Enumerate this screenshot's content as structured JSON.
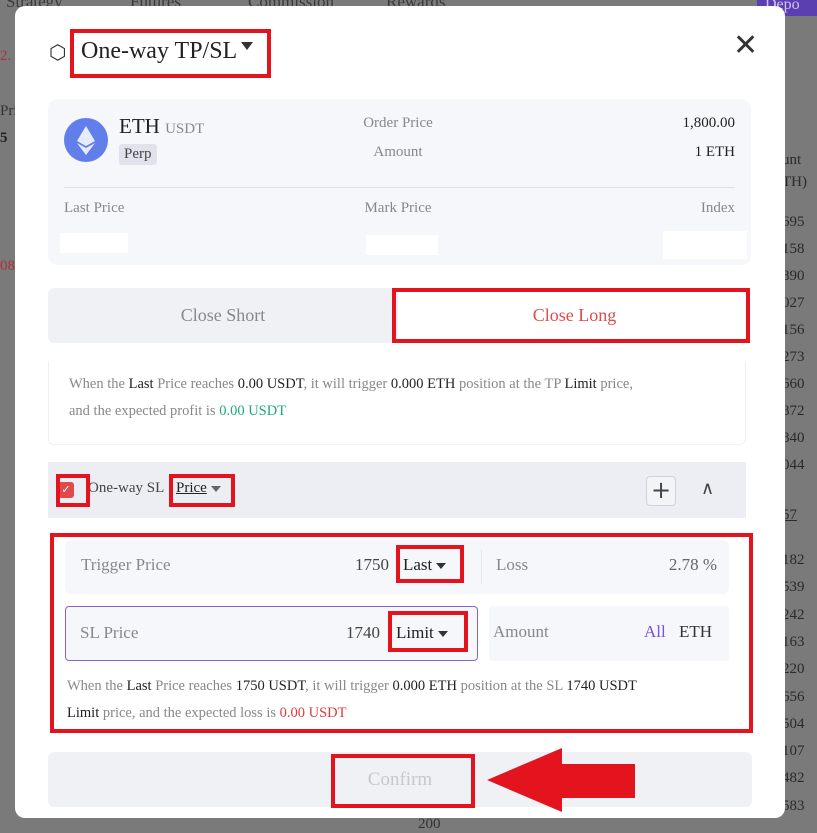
{
  "background": {
    "tabs": [
      "Strategy",
      "Futures",
      "Commission",
      "Rewards"
    ],
    "deposit_button": "Depo",
    "left_fragments": [
      "2.",
      "Pri",
      "5",
      "08"
    ],
    "right_header": [
      "unt",
      "TH)"
    ],
    "right_values_top": [
      "695",
      "158",
      "890",
      "027",
      "156",
      "273",
      "660",
      "872",
      "840",
      "044"
    ],
    "right_mid": "57",
    "right_values_bottom": [
      "182",
      "539",
      "242",
      "163",
      "220",
      "656",
      "504",
      "107",
      "482",
      "583"
    ],
    "bottom_label": "200"
  },
  "modal": {
    "title": "One-way TP/SL",
    "close_icon": "close-icon",
    "pair": {
      "base": "ETH",
      "quote": "USDT",
      "badge": "Perp",
      "icon": "ethereum-icon",
      "icon_color": "#627eea"
    },
    "order_price_label": "Order Price",
    "order_price": "1,800.00",
    "amount_label": "Amount",
    "amount": "1 ETH",
    "last_price_label": "Last Price",
    "mark_price_label": "Mark Price",
    "index_label": "Index",
    "tabs": [
      {
        "label": "Close Short",
        "active": false
      },
      {
        "label": "Close Long",
        "active": true
      }
    ],
    "tp_info": {
      "p1": "When the ",
      "last": "Last",
      "p2": " Price reaches ",
      "price": "0.00 USDT",
      "p3": ", it will trigger ",
      "qty": "0.000 ETH",
      "p4": " position at the TP ",
      "limit": "Limit",
      "p5": " price,",
      "p6": "and the expected profit is ",
      "profit": "0.00 USDT"
    },
    "sl": {
      "checked": true,
      "label": "One-way SL",
      "mode": "Price",
      "trigger_label": "Trigger Price",
      "trigger_value": "1750",
      "trigger_type": "Last",
      "loss_label": "Loss",
      "loss_value": "2.78 %",
      "sl_price_label": "SL Price",
      "sl_price_value": "1740",
      "sl_price_type": "Limit",
      "amount_label": "Amount",
      "amount_all": "All",
      "amount_unit": "ETH",
      "info": {
        "p1": "When the ",
        "last": "Last",
        "p2": " Price reaches ",
        "price": "1750 USDT",
        "p3": ", it will trigger ",
        "qty": "0.000 ETH",
        "p4": " position at the SL ",
        "slp": "1740 USDT",
        "limit": "Limit",
        "p5": " price, and the expected loss is ",
        "loss": "0.00 USDT"
      }
    },
    "confirm": "Confirm"
  },
  "colors": {
    "accent_red": "#e3141e",
    "profit": "#1aab7a",
    "loss": "#e03a3a",
    "purple": "#7b4fe0",
    "close_long": "#e04a4a"
  }
}
